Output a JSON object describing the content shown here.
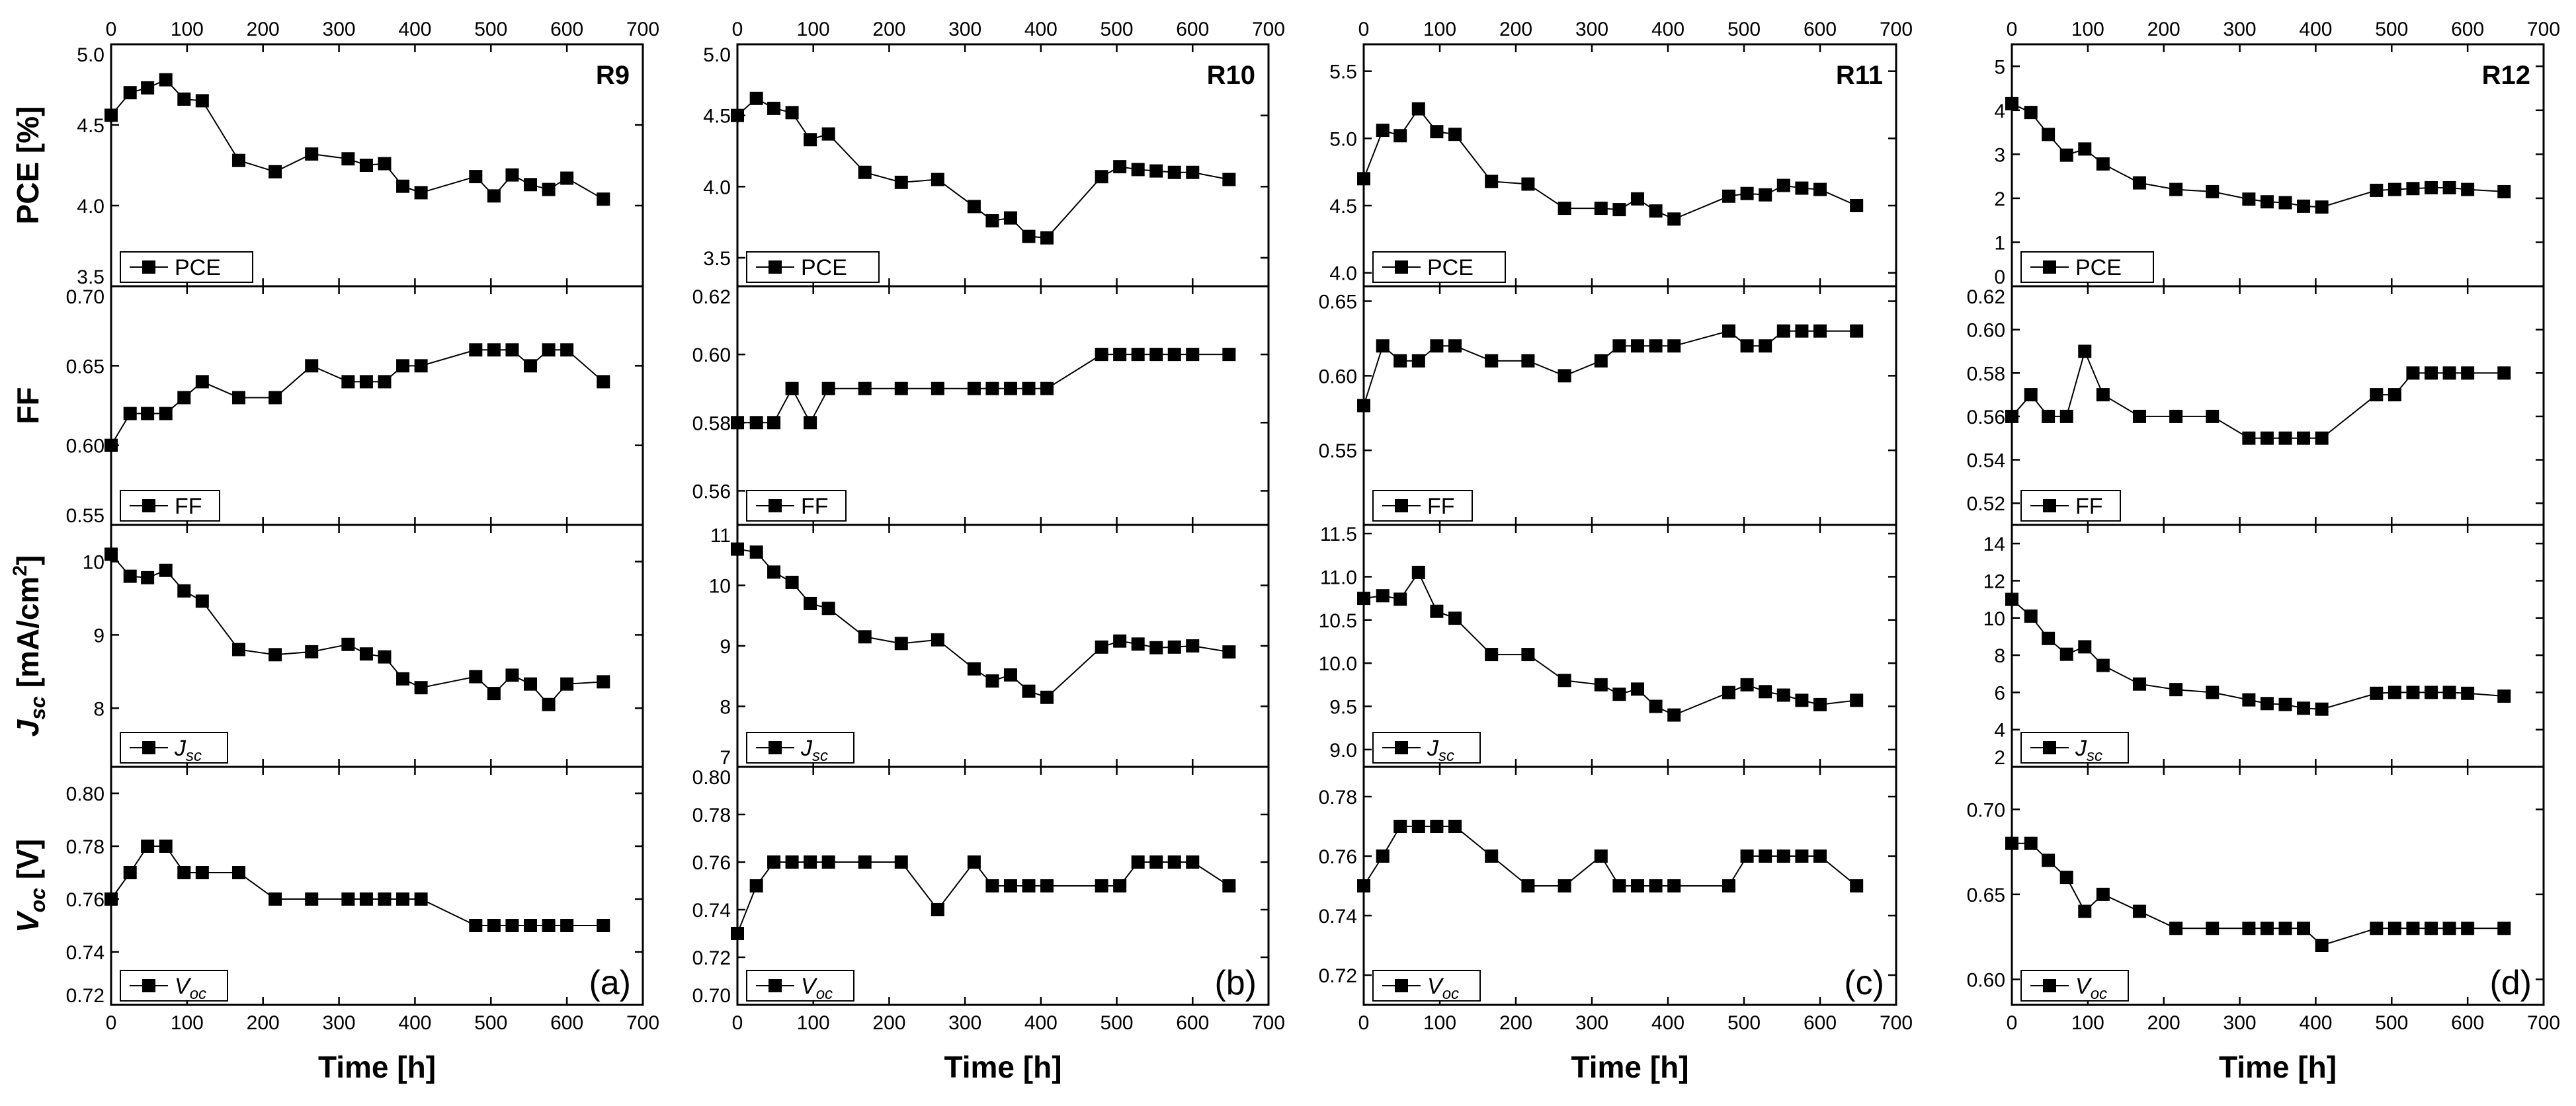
{
  "x_axis": {
    "label": "Time [h]",
    "min": 0,
    "max": 700,
    "ticks": [
      0,
      100,
      200,
      300,
      400,
      500,
      600,
      700
    ]
  },
  "row_labels": {
    "pce": {
      "main": "PCE [%]"
    },
    "ff": {
      "main": "FF"
    },
    "jsc": {
      "main": "J",
      "sub": "sc",
      "rest": " [mA/cm",
      "sup": "2",
      "end": "]"
    },
    "voc": {
      "main": "V",
      "sub": "oc",
      "rest": " [V]"
    }
  },
  "legends": {
    "pce": {
      "main": "PCE"
    },
    "ff": {
      "main": "FF"
    },
    "jsc": {
      "main": "J",
      "sub": "sc"
    },
    "voc": {
      "main": "V",
      "sub": "oc"
    }
  },
  "chart_data": [
    {
      "type": "line",
      "panel_id": "R9",
      "sub_label": "(a)",
      "x_label": "Time [h]",
      "series": [
        {
          "name": "PCE",
          "ylim": [
            3.5,
            5.0
          ],
          "yticks": [
            3.5,
            4.0,
            4.5,
            5.0
          ],
          "ytick_labels": [
            "3.5",
            "4.0",
            "4.5",
            "5.0"
          ],
          "x": [
            0,
            25,
            48,
            72,
            96,
            120,
            168,
            216,
            264,
            312,
            336,
            360,
            384,
            408,
            480,
            504,
            528,
            552,
            576,
            600,
            648
          ],
          "y": [
            4.56,
            4.7,
            4.73,
            4.78,
            4.66,
            4.65,
            4.28,
            4.21,
            4.32,
            4.29,
            4.25,
            4.26,
            4.12,
            4.08,
            4.18,
            4.06,
            4.19,
            4.13,
            4.1,
            4.17,
            4.04
          ]
        },
        {
          "name": "FF",
          "ylim": [
            0.55,
            0.7
          ],
          "yticks": [
            0.55,
            0.6,
            0.65,
            0.7
          ],
          "ytick_labels": [
            "0.55",
            "0.60",
            "0.65",
            "0.70"
          ],
          "x": [
            0,
            25,
            48,
            72,
            96,
            120,
            168,
            216,
            264,
            312,
            336,
            360,
            384,
            408,
            480,
            504,
            528,
            552,
            576,
            600,
            648
          ],
          "y": [
            0.6,
            0.62,
            0.62,
            0.62,
            0.63,
            0.64,
            0.63,
            0.63,
            0.65,
            0.64,
            0.64,
            0.64,
            0.65,
            0.65,
            0.66,
            0.66,
            0.66,
            0.65,
            0.66,
            0.66,
            0.64
          ]
        },
        {
          "name": "Jsc",
          "ylim": [
            7.2,
            10.5
          ],
          "yticks": [
            8,
            9,
            10
          ],
          "ytick_labels": [
            "8",
            "9",
            "10"
          ],
          "x": [
            0,
            25,
            48,
            72,
            96,
            120,
            168,
            216,
            264,
            312,
            336,
            360,
            384,
            408,
            480,
            504,
            528,
            552,
            576,
            600,
            648
          ],
          "y": [
            10.1,
            9.8,
            9.78,
            9.88,
            9.6,
            9.46,
            8.8,
            8.73,
            8.77,
            8.87,
            8.74,
            8.7,
            8.4,
            8.28,
            8.43,
            8.2,
            8.45,
            8.33,
            8.05,
            8.33,
            8.36
          ]
        },
        {
          "name": "Voc",
          "ylim": [
            0.72,
            0.81
          ],
          "yticks": [
            0.72,
            0.74,
            0.76,
            0.78,
            0.8
          ],
          "ytick_labels": [
            "0.72",
            "0.74",
            "0.76",
            "0.78",
            "0.80"
          ],
          "x": [
            0,
            25,
            48,
            72,
            96,
            120,
            168,
            216,
            264,
            312,
            336,
            360,
            384,
            408,
            480,
            504,
            528,
            552,
            576,
            600,
            648
          ],
          "y": [
            0.76,
            0.77,
            0.78,
            0.78,
            0.77,
            0.77,
            0.77,
            0.76,
            0.76,
            0.76,
            0.76,
            0.76,
            0.76,
            0.76,
            0.75,
            0.75,
            0.75,
            0.75,
            0.75,
            0.75,
            0.75
          ]
        }
      ]
    },
    {
      "type": "line",
      "panel_id": "R10",
      "sub_label": "(b)",
      "x_label": "Time [h]",
      "series": [
        {
          "name": "PCE",
          "ylim": [
            3.3,
            5.0
          ],
          "yticks": [
            3.5,
            4.0,
            4.5,
            5.0
          ],
          "ytick_labels": [
            "3.5",
            "4.0",
            "4.5",
            "5.0"
          ],
          "x": [
            0,
            25,
            48,
            72,
            96,
            120,
            168,
            216,
            264,
            312,
            336,
            360,
            384,
            408,
            480,
            504,
            528,
            552,
            576,
            600,
            648
          ],
          "y": [
            4.5,
            4.62,
            4.55,
            4.52,
            4.33,
            4.37,
            4.1,
            4.03,
            4.05,
            3.86,
            3.76,
            3.78,
            3.65,
            3.64,
            4.07,
            4.14,
            4.12,
            4.11,
            4.1,
            4.1,
            4.05
          ]
        },
        {
          "name": "FF",
          "ylim": [
            0.55,
            0.62
          ],
          "yticks": [
            0.56,
            0.58,
            0.6,
            0.62
          ],
          "ytick_labels": [
            "0.56",
            "0.58",
            "0.60",
            "0.62"
          ],
          "x": [
            0,
            25,
            48,
            72,
            96,
            120,
            168,
            216,
            264,
            312,
            336,
            360,
            384,
            408,
            480,
            504,
            528,
            552,
            576,
            600,
            648
          ],
          "y": [
            0.58,
            0.58,
            0.58,
            0.59,
            0.58,
            0.59,
            0.59,
            0.59,
            0.59,
            0.59,
            0.59,
            0.59,
            0.59,
            0.59,
            0.6,
            0.6,
            0.6,
            0.6,
            0.6,
            0.6,
            0.6
          ]
        },
        {
          "name": "Jsc",
          "ylim": [
            7,
            11
          ],
          "yticks": [
            7,
            8,
            9,
            10,
            11
          ],
          "ytick_labels": [
            "7",
            "8",
            "9",
            "10",
            "11"
          ],
          "x": [
            0,
            25,
            48,
            72,
            96,
            120,
            168,
            216,
            264,
            312,
            336,
            360,
            384,
            408,
            480,
            504,
            528,
            552,
            576,
            600,
            648
          ],
          "y": [
            10.6,
            10.55,
            10.22,
            10.05,
            9.7,
            9.62,
            9.15,
            9.04,
            9.1,
            8.62,
            8.42,
            8.52,
            8.25,
            8.15,
            8.98,
            9.08,
            9.03,
            8.97,
            8.98,
            9.0,
            8.9
          ]
        },
        {
          "name": "Voc",
          "ylim": [
            0.7,
            0.8
          ],
          "yticks": [
            0.7,
            0.72,
            0.74,
            0.76,
            0.78,
            0.8
          ],
          "ytick_labels": [
            "0.70",
            "0.72",
            "0.74",
            "0.76",
            "0.78",
            "0.80"
          ],
          "x": [
            0,
            25,
            48,
            72,
            96,
            120,
            168,
            216,
            264,
            312,
            336,
            360,
            384,
            408,
            480,
            504,
            528,
            552,
            576,
            600,
            648
          ],
          "y": [
            0.73,
            0.75,
            0.76,
            0.76,
            0.76,
            0.76,
            0.76,
            0.76,
            0.74,
            0.76,
            0.75,
            0.75,
            0.75,
            0.75,
            0.75,
            0.75,
            0.76,
            0.76,
            0.76,
            0.76,
            0.75
          ]
        }
      ]
    },
    {
      "type": "line",
      "panel_id": "R11",
      "sub_label": "(c)",
      "x_label": "Time [h]",
      "series": [
        {
          "name": "PCE",
          "ylim": [
            3.9,
            5.7
          ],
          "yticks": [
            4.0,
            4.5,
            5.0,
            5.5
          ],
          "ytick_labels": [
            "4.0",
            "4.5",
            "5.0",
            "5.5"
          ],
          "x": [
            0,
            25,
            48,
            72,
            96,
            120,
            168,
            216,
            264,
            312,
            336,
            360,
            384,
            408,
            480,
            504,
            528,
            552,
            576,
            600,
            648
          ],
          "y": [
            4.7,
            5.06,
            5.02,
            5.22,
            5.05,
            5.03,
            4.68,
            4.66,
            4.48,
            4.48,
            4.47,
            4.55,
            4.46,
            4.4,
            4.57,
            4.59,
            4.58,
            4.65,
            4.63,
            4.62,
            4.5
          ]
        },
        {
          "name": "FF",
          "ylim": [
            0.5,
            0.66
          ],
          "yticks": [
            0.55,
            0.6,
            0.65
          ],
          "ytick_labels": [
            "0.55",
            "0.60",
            "0.65"
          ],
          "x": [
            0,
            25,
            48,
            72,
            96,
            120,
            168,
            216,
            264,
            312,
            336,
            360,
            384,
            408,
            480,
            504,
            528,
            552,
            576,
            600,
            648
          ],
          "y": [
            0.58,
            0.62,
            0.61,
            0.61,
            0.62,
            0.62,
            0.61,
            0.61,
            0.6,
            0.61,
            0.62,
            0.62,
            0.62,
            0.62,
            0.63,
            0.62,
            0.62,
            0.63,
            0.63,
            0.63,
            0.63
          ]
        },
        {
          "name": "Jsc",
          "ylim": [
            8.8,
            11.6
          ],
          "yticks": [
            9.0,
            9.5,
            10.0,
            10.5,
            11.0,
            11.5
          ],
          "ytick_labels": [
            "9.0",
            "9.5",
            "10.0",
            "10.5",
            "11.0",
            "11.5"
          ],
          "x": [
            0,
            25,
            48,
            72,
            96,
            120,
            168,
            216,
            264,
            312,
            336,
            360,
            384,
            408,
            480,
            504,
            528,
            552,
            576,
            600,
            648
          ],
          "y": [
            10.75,
            10.78,
            10.74,
            11.05,
            10.6,
            10.52,
            10.1,
            10.1,
            9.8,
            9.75,
            9.64,
            9.7,
            9.5,
            9.4,
            9.66,
            9.75,
            9.67,
            9.63,
            9.57,
            9.52,
            9.57
          ]
        },
        {
          "name": "Voc",
          "ylim": [
            0.71,
            0.79
          ],
          "yticks": [
            0.72,
            0.74,
            0.76,
            0.78
          ],
          "ytick_labels": [
            "0.72",
            "0.74",
            "0.76",
            "0.78"
          ],
          "x": [
            0,
            25,
            48,
            72,
            96,
            120,
            168,
            216,
            264,
            312,
            336,
            360,
            384,
            408,
            480,
            504,
            528,
            552,
            576,
            600,
            648
          ],
          "y": [
            0.75,
            0.76,
            0.77,
            0.77,
            0.77,
            0.77,
            0.76,
            0.75,
            0.75,
            0.76,
            0.75,
            0.75,
            0.75,
            0.75,
            0.75,
            0.76,
            0.76,
            0.76,
            0.76,
            0.76,
            0.75
          ]
        }
      ]
    },
    {
      "type": "line",
      "panel_id": "R12",
      "sub_label": "(d)",
      "x_label": "Time [h]",
      "series": [
        {
          "name": "PCE",
          "ylim": [
            0,
            5.5
          ],
          "yticks": [
            0,
            1,
            2,
            3,
            4,
            5
          ],
          "ytick_labels": [
            "0",
            "1",
            "2",
            "3",
            "4",
            "5"
          ],
          "x": [
            0,
            25,
            48,
            72,
            96,
            120,
            168,
            216,
            264,
            312,
            336,
            360,
            384,
            408,
            480,
            504,
            528,
            552,
            576,
            600,
            648
          ],
          "y": [
            4.15,
            3.95,
            3.45,
            2.98,
            3.12,
            2.78,
            2.35,
            2.2,
            2.15,
            1.98,
            1.92,
            1.9,
            1.82,
            1.8,
            2.18,
            2.2,
            2.22,
            2.24,
            2.24,
            2.2,
            2.15
          ]
        },
        {
          "name": "FF",
          "ylim": [
            0.51,
            0.62
          ],
          "yticks": [
            0.52,
            0.54,
            0.56,
            0.58,
            0.6,
            0.62
          ],
          "ytick_labels": [
            "0.52",
            "0.54",
            "0.56",
            "0.58",
            "0.60",
            "0.62"
          ],
          "x": [
            0,
            25,
            48,
            72,
            96,
            120,
            168,
            216,
            264,
            312,
            336,
            360,
            384,
            408,
            480,
            504,
            528,
            552,
            576,
            600,
            648
          ],
          "y": [
            0.56,
            0.57,
            0.56,
            0.56,
            0.59,
            0.57,
            0.56,
            0.56,
            0.56,
            0.55,
            0.55,
            0.55,
            0.55,
            0.55,
            0.57,
            0.57,
            0.58,
            0.58,
            0.58,
            0.58,
            0.58
          ]
        },
        {
          "name": "Jsc",
          "ylim": [
            2,
            15
          ],
          "yticks": [
            2,
            4,
            6,
            8,
            10,
            12,
            14
          ],
          "ytick_labels": [
            "2",
            "4",
            "6",
            "8",
            "10",
            "12",
            "14"
          ],
          "x": [
            0,
            25,
            48,
            72,
            96,
            120,
            168,
            216,
            264,
            312,
            336,
            360,
            384,
            408,
            480,
            504,
            528,
            552,
            576,
            600,
            648
          ],
          "y": [
            11.0,
            10.1,
            8.9,
            8.05,
            8.45,
            7.45,
            6.45,
            6.15,
            6.0,
            5.6,
            5.4,
            5.35,
            5.15,
            5.1,
            5.95,
            6.0,
            6.0,
            6.0,
            6.0,
            5.95,
            5.8
          ]
        },
        {
          "name": "Voc",
          "ylim": [
            0.585,
            0.725
          ],
          "yticks": [
            0.6,
            0.65,
            0.7
          ],
          "ytick_labels": [
            "0.60",
            "0.65",
            "0.70"
          ],
          "x": [
            0,
            25,
            48,
            72,
            96,
            120,
            168,
            216,
            264,
            312,
            336,
            360,
            384,
            408,
            480,
            504,
            528,
            552,
            576,
            600,
            648
          ],
          "y": [
            0.68,
            0.68,
            0.67,
            0.66,
            0.64,
            0.65,
            0.64,
            0.63,
            0.63,
            0.63,
            0.63,
            0.63,
            0.63,
            0.62,
            0.63,
            0.63,
            0.63,
            0.63,
            0.63,
            0.63,
            0.63
          ]
        }
      ]
    }
  ]
}
